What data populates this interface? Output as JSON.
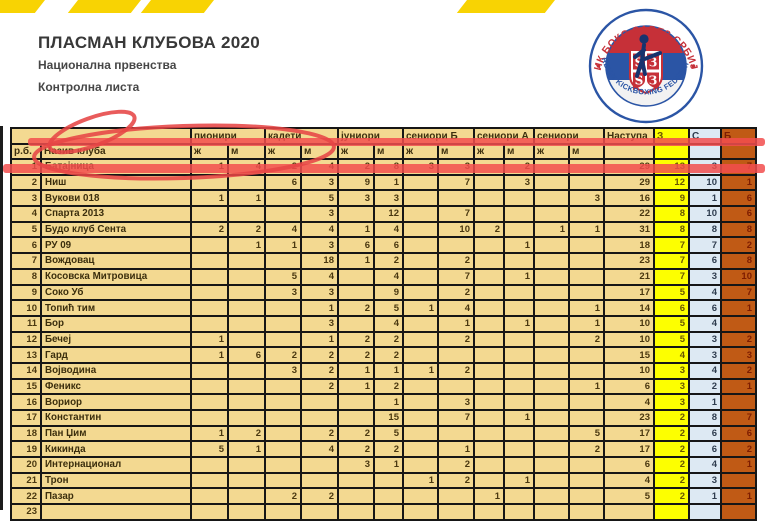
{
  "page": {
    "title": "ПЛАСМАН КЛУБОВА 2020",
    "subtitle1": "Национална првенства",
    "subtitle2": "Контролна листа"
  },
  "logo": {
    "top_text": "КИК БОКС САВЕЗ СРБИЈЕ",
    "bottom_text": "SERBIAN KICKBOXING FEDERATION",
    "firesteel": [
      "Ѕ",
      "З",
      "Ѕ",
      "З"
    ],
    "colors": {
      "blue": "#2b55a5",
      "red": "#c63038"
    }
  },
  "colors": {
    "stripe_yellow": "#f8d303",
    "table_tan": "#f3d991",
    "gold_col": "#fdff00",
    "silver_col": "#dde9f3",
    "bronze_col": "#c05a15",
    "annotation_red": "#e64646"
  },
  "table": {
    "group_headers": [
      {
        "label": "",
        "span": 2,
        "cls": ""
      },
      {
        "label": "пионири",
        "span": 2,
        "cls": ""
      },
      {
        "label": "кадети",
        "span": 2,
        "cls": ""
      },
      {
        "label": "јуниори",
        "span": 2,
        "cls": ""
      },
      {
        "label": "сениори Б",
        "span": 2,
        "cls": ""
      },
      {
        "label": "сениори А",
        "span": 2,
        "cls": ""
      },
      {
        "label": "сениори",
        "span": 2,
        "cls": ""
      },
      {
        "label": "Наступа",
        "span": 1,
        "cls": ""
      },
      {
        "label": "З",
        "span": 1,
        "cls": "gold"
      },
      {
        "label": "С",
        "span": 1,
        "cls": "silver"
      },
      {
        "label": "Б",
        "span": 1,
        "cls": "bronze"
      }
    ],
    "sub_headers": [
      "р.б.",
      "Назив клуба",
      "ж",
      "м",
      "ж",
      "м",
      "ж",
      "м",
      "ж",
      "м",
      "ж",
      "м",
      "ж",
      "м",
      "",
      "",
      "",
      ""
    ],
    "rows": [
      {
        "rank": "1",
        "club": "Батајница",
        "cells": [
          "1",
          "4",
          "2",
          "4",
          "2",
          "8",
          "3",
          "3",
          "",
          "2",
          "",
          "",
          "29",
          "13",
          "3",
          "7"
        ]
      },
      {
        "rank": "2",
        "club": "Ниш",
        "cells": [
          "",
          "",
          "6",
          "3",
          "9",
          "1",
          "",
          "7",
          "",
          "3",
          "",
          "",
          "29",
          "12",
          "10",
          "1"
        ]
      },
      {
        "rank": "3",
        "club": "Вукови 018",
        "cells": [
          "1",
          "1",
          "",
          "5",
          "3",
          "3",
          "",
          "",
          "",
          "",
          "",
          "3",
          "16",
          "9",
          "1",
          "6"
        ]
      },
      {
        "rank": "4",
        "club": "Спарта 2013",
        "cells": [
          "",
          "",
          "",
          "3",
          "",
          "12",
          "",
          "7",
          "",
          "",
          "",
          "",
          "22",
          "8",
          "10",
          "6"
        ]
      },
      {
        "rank": "5",
        "club": "Будо клуб Сента",
        "cells": [
          "2",
          "2",
          "4",
          "4",
          "1",
          "4",
          "",
          "10",
          "2",
          "",
          "1",
          "1",
          "31",
          "8",
          "8",
          "8"
        ]
      },
      {
        "rank": "6",
        "club": "РУ 09",
        "cells": [
          "",
          "1",
          "1",
          "3",
          "6",
          "6",
          "",
          "",
          "",
          "1",
          "",
          "",
          "18",
          "7",
          "7",
          "2"
        ]
      },
      {
        "rank": "7",
        "club": "Вождовац",
        "cells": [
          "",
          "",
          "",
          "18",
          "1",
          "2",
          "",
          "2",
          "",
          "",
          "",
          "",
          "23",
          "7",
          "6",
          "8"
        ]
      },
      {
        "rank": "8",
        "club": "Косовска Митровица",
        "cells": [
          "",
          "",
          "5",
          "4",
          "",
          "4",
          "",
          "7",
          "",
          "1",
          "",
          "",
          "21",
          "7",
          "3",
          "10"
        ]
      },
      {
        "rank": "9",
        "club": "Соко Уб",
        "cells": [
          "",
          "",
          "3",
          "3",
          "",
          "9",
          "",
          "2",
          "",
          "",
          "",
          "",
          "17",
          "5",
          "4",
          "7"
        ]
      },
      {
        "rank": "10",
        "club": "Топић тим",
        "cells": [
          "",
          "",
          "",
          "1",
          "2",
          "5",
          "1",
          "4",
          "",
          "",
          "",
          "1",
          "14",
          "6",
          "6",
          "1"
        ]
      },
      {
        "rank": "11",
        "club": "Бор",
        "cells": [
          "",
          "",
          "",
          "3",
          "",
          "4",
          "",
          "1",
          "",
          "1",
          "",
          "1",
          "10",
          "5",
          "4",
          ""
        ]
      },
      {
        "rank": "12",
        "club": "Бечеј",
        "cells": [
          "1",
          "",
          "",
          "1",
          "2",
          "2",
          "",
          "2",
          "",
          "",
          "",
          "2",
          "10",
          "5",
          "3",
          "2"
        ]
      },
      {
        "rank": "13",
        "club": "Гард",
        "cells": [
          "1",
          "6",
          "2",
          "2",
          "2",
          "2",
          "",
          "",
          "",
          "",
          "",
          "",
          "15",
          "4",
          "3",
          "3"
        ]
      },
      {
        "rank": "14",
        "club": "Војводина",
        "cells": [
          "",
          "",
          "3",
          "2",
          "1",
          "1",
          "1",
          "2",
          "",
          "",
          "",
          "",
          "10",
          "3",
          "4",
          "2"
        ]
      },
      {
        "rank": "15",
        "club": "Феникс",
        "cells": [
          "",
          "",
          "",
          "2",
          "1",
          "2",
          "",
          "",
          "",
          "",
          "",
          "1",
          "6",
          "3",
          "2",
          "1"
        ]
      },
      {
        "rank": "16",
        "club": "Вориор",
        "cells": [
          "",
          "",
          "",
          "",
          "",
          "1",
          "",
          "3",
          "",
          "",
          "",
          "",
          "4",
          "3",
          "1",
          ""
        ]
      },
      {
        "rank": "17",
        "club": "Константин",
        "cells": [
          "",
          "",
          "",
          "",
          "",
          "15",
          "",
          "7",
          "",
          "1",
          "",
          "",
          "23",
          "2",
          "8",
          "7"
        ]
      },
      {
        "rank": "18",
        "club": "Пан Џим",
        "cells": [
          "1",
          "2",
          "",
          "2",
          "2",
          "5",
          "",
          "",
          "",
          "",
          "",
          "5",
          "17",
          "2",
          "6",
          "6"
        ]
      },
      {
        "rank": "19",
        "club": "Кикинда",
        "cells": [
          "5",
          "1",
          "",
          "4",
          "2",
          "2",
          "",
          "1",
          "",
          "",
          "",
          "2",
          "17",
          "2",
          "6",
          "2"
        ]
      },
      {
        "rank": "20",
        "club": "Интернационал",
        "cells": [
          "",
          "",
          "",
          "",
          "3",
          "1",
          "",
          "2",
          "",
          "",
          "",
          "",
          "6",
          "2",
          "4",
          "1"
        ]
      },
      {
        "rank": "21",
        "club": "Трон",
        "cells": [
          "",
          "",
          "",
          "",
          "",
          "",
          "1",
          "2",
          "",
          "1",
          "",
          "",
          "4",
          "2",
          "3",
          ""
        ]
      },
      {
        "rank": "22",
        "club": "Пазар",
        "cells": [
          "",
          "",
          "2",
          "2",
          "",
          "",
          "",
          "",
          "1",
          "",
          "",
          "",
          "5",
          "2",
          "1",
          "1"
        ]
      },
      {
        "rank": "23",
        "club": "",
        "cells": [
          "",
          "",
          "",
          "",
          "",
          "",
          "",
          "",
          "",
          "",
          "",
          "",
          "",
          "",
          "",
          ""
        ]
      }
    ]
  }
}
